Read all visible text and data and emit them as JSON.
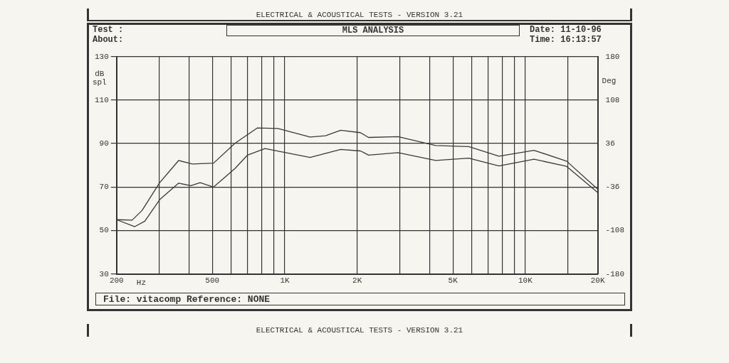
{
  "chart_data": {
    "type": "line",
    "title": "MLS ANALYSIS",
    "xlabel": "Hz",
    "ylabel": "dB spl",
    "y2label": "Deg",
    "annotations": [
      "ELECTRICAL & ACOUSTICAL TESTS - VERSION 3.21",
      "Test :",
      "About:",
      "Date: 11-10-96",
      "Time: 16:13:57",
      "File: vitacomp Reference: NONE",
      "ELECTRICAL & ACOUSTICAL TESTS - VERSION 3.21"
    ],
    "log": "x",
    "grid": true,
    "legend": false,
    "marker": "none",
    "line_style": "solid",
    "xlim": [
      200,
      20000
    ],
    "xticks": [
      200,
      {
        "value": 300,
        "label": null
      },
      {
        "value": 400,
        "label": null
      },
      500,
      {
        "value": 600,
        "label": null
      },
      {
        "value": 700,
        "label": null
      },
      {
        "value": 800,
        "label": null
      },
      {
        "value": 900,
        "label": null
      },
      {
        "value": 1000,
        "label": "1K"
      },
      {
        "value": 2000,
        "label": "2K"
      },
      {
        "value": 3000,
        "label": null
      },
      {
        "value": 4000,
        "label": null
      },
      {
        "value": 5000,
        "label": "5K"
      },
      {
        "value": 6000,
        "label": null
      },
      {
        "value": 7000,
        "label": null
      },
      {
        "value": 8000,
        "label": null
      },
      {
        "value": 9000,
        "label": null
      },
      {
        "value": 10000,
        "label": "10K"
      },
      {
        "value": 15000,
        "label": null
      },
      {
        "value": 20000,
        "label": "20K"
      }
    ],
    "ylim": [
      30,
      130
    ],
    "yticks": [
      30,
      50,
      70,
      90,
      110,
      130
    ],
    "y2lim": [
      -180,
      180
    ],
    "y2ticks": [
      -180,
      -108,
      -36,
      36,
      108,
      180
    ],
    "series": [
      {
        "color": "#3a3a3a",
        "x": [
          200,
          232,
          255,
          302,
          362,
          413,
          506,
          622,
          770,
          937,
          1274,
          1476,
          1708,
          2064,
          2230,
          2958,
          4242,
          5820,
          7771,
          10870,
          14850,
          20000
        ],
        "values": [
          55,
          54.8,
          59.2,
          72,
          82.2,
          80.6,
          81,
          90.2,
          97.2,
          96.9,
          93,
          93.6,
          96.1,
          95,
          92.8,
          93.2,
          89.1,
          88.6,
          84.2,
          86.9,
          81.9,
          69
        ]
      },
      {
        "color": "#3a3a3a",
        "x": [
          200,
          238,
          262,
          302,
          362,
          407,
          445,
          506,
          622,
          700,
          828,
          1274,
          1708,
          2064,
          2230,
          2958,
          4242,
          5820,
          7771,
          10870,
          14850,
          20000
        ],
        "values": [
          55,
          51.8,
          54.3,
          64.2,
          71.8,
          70.6,
          72,
          70,
          78.6,
          84.7,
          87.7,
          83.6,
          87.3,
          86.6,
          84.7,
          85.8,
          82.2,
          83.3,
          79.7,
          82.8,
          79.5,
          67.5
        ]
      }
    ]
  }
}
